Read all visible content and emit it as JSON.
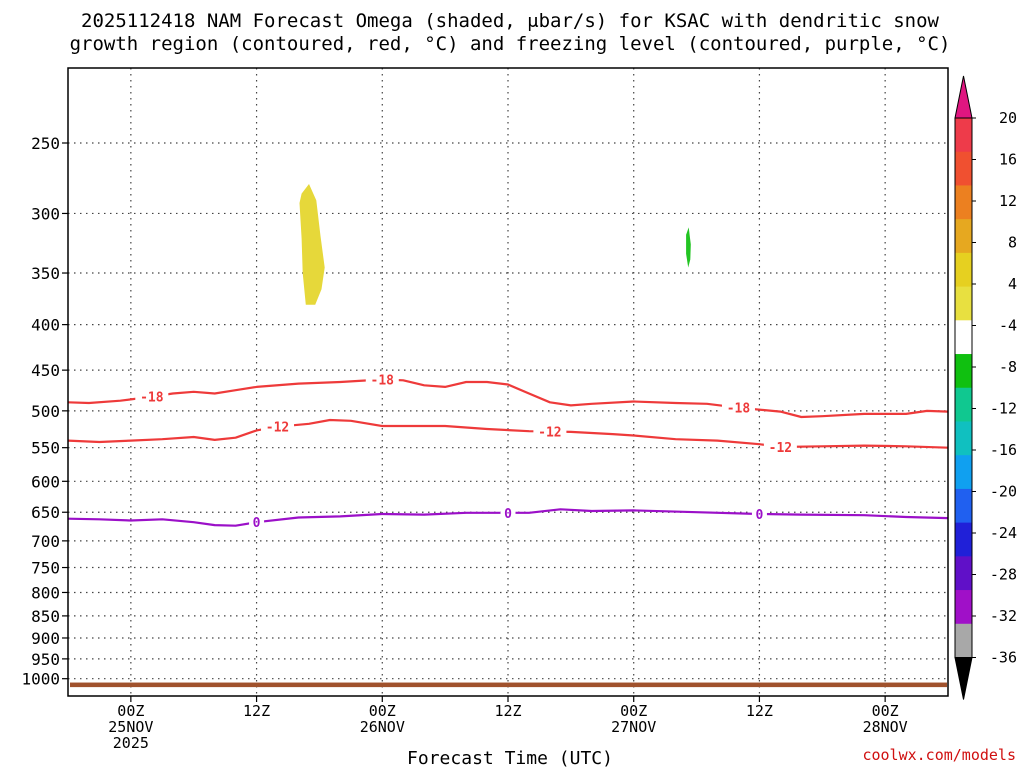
{
  "chart_data": {
    "type": "time-height-contour",
    "title_line1": "2025112418 NAM Forecast Omega (shaded, μbar/s) for KSAC with dendritic snow",
    "title_line2": "growth region (contoured, red, °C) and freezing level (contoured, purple, °C)",
    "xlabel": "Forecast Time (UTC)",
    "credit": "coolwx.com/models",
    "x_range_hours": [
      -6,
      78
    ],
    "x_ticks": [
      {
        "h": 0,
        "lines": [
          "00Z",
          "25NOV",
          "2025"
        ]
      },
      {
        "h": 12,
        "lines": [
          "12Z"
        ]
      },
      {
        "h": 24,
        "lines": [
          "00Z",
          "26NOV"
        ]
      },
      {
        "h": 36,
        "lines": [
          "12Z"
        ]
      },
      {
        "h": 48,
        "lines": [
          "00Z",
          "27NOV"
        ]
      },
      {
        "h": 60,
        "lines": [
          "12Z"
        ]
      },
      {
        "h": 72,
        "lines": [
          "00Z",
          "28NOV"
        ]
      }
    ],
    "y_range_hpa": [
      200,
      1040
    ],
    "y_ticks": [
      250,
      300,
      350,
      400,
      450,
      500,
      550,
      600,
      650,
      700,
      750,
      800,
      850,
      900,
      950,
      1000
    ],
    "contours": [
      {
        "name": "-18 C isotherm",
        "level": "-18",
        "color": "#ee3a3a",
        "label_hours": [
          2,
          24,
          58
        ],
        "points": [
          [
            -6,
            489
          ],
          [
            -4,
            490
          ],
          [
            -1,
            487
          ],
          [
            2,
            482
          ],
          [
            4,
            478
          ],
          [
            6,
            476
          ],
          [
            8,
            478
          ],
          [
            10,
            474
          ],
          [
            12,
            470
          ],
          [
            16,
            466
          ],
          [
            20,
            464
          ],
          [
            24,
            461
          ],
          [
            26,
            462
          ],
          [
            28,
            468
          ],
          [
            30,
            470
          ],
          [
            32,
            464
          ],
          [
            34,
            464
          ],
          [
            36,
            467
          ],
          [
            38,
            478
          ],
          [
            40,
            489
          ],
          [
            42,
            493
          ],
          [
            44,
            491
          ],
          [
            48,
            488
          ],
          [
            52,
            490
          ],
          [
            55,
            491
          ],
          [
            58,
            496
          ],
          [
            62,
            501
          ],
          [
            64,
            508
          ],
          [
            66,
            507
          ],
          [
            70,
            504
          ],
          [
            74,
            504
          ],
          [
            76,
            500
          ],
          [
            78,
            501
          ]
        ]
      },
      {
        "name": "-12 C isotherm",
        "level": "-12",
        "color": "#ee3a3a",
        "label_hours": [
          14,
          40,
          62
        ],
        "points": [
          [
            -6,
            540
          ],
          [
            -3,
            542
          ],
          [
            0,
            540
          ],
          [
            3,
            538
          ],
          [
            6,
            535
          ],
          [
            8,
            539
          ],
          [
            10,
            536
          ],
          [
            12,
            526
          ],
          [
            14,
            521
          ],
          [
            17,
            517
          ],
          [
            19,
            512
          ],
          [
            21,
            513
          ],
          [
            24,
            520
          ],
          [
            27,
            520
          ],
          [
            30,
            520
          ],
          [
            34,
            524
          ],
          [
            38,
            527
          ],
          [
            42,
            528
          ],
          [
            46,
            531
          ],
          [
            48,
            533
          ],
          [
            52,
            538
          ],
          [
            56,
            540
          ],
          [
            60,
            545
          ],
          [
            62,
            549
          ],
          [
            66,
            548
          ],
          [
            70,
            547
          ],
          [
            74,
            548
          ],
          [
            78,
            550
          ]
        ]
      },
      {
        "name": "0 C freezing level",
        "level": "0",
        "color": "#9b10c8",
        "label_hours": [
          12,
          36,
          60
        ],
        "points": [
          [
            -6,
            661
          ],
          [
            -3,
            662
          ],
          [
            0,
            664
          ],
          [
            3,
            662
          ],
          [
            6,
            667
          ],
          [
            8,
            672
          ],
          [
            10,
            673
          ],
          [
            12,
            667
          ],
          [
            16,
            659
          ],
          [
            20,
            657
          ],
          [
            24,
            653
          ],
          [
            28,
            654
          ],
          [
            32,
            651
          ],
          [
            36,
            651
          ],
          [
            38,
            651
          ],
          [
            41,
            645
          ],
          [
            44,
            648
          ],
          [
            48,
            647
          ],
          [
            54,
            650
          ],
          [
            60,
            653
          ],
          [
            64,
            654
          ],
          [
            70,
            655
          ],
          [
            74,
            658
          ],
          [
            78,
            660
          ]
        ]
      }
    ],
    "shaded_regions": [
      {
        "name": "omega 4 to 8 ubar/s",
        "color": "#e6d83a",
        "value_range": [
          4,
          8
        ],
        "points": [
          [
            16.3,
            285
          ],
          [
            17.0,
            278
          ],
          [
            17.7,
            290
          ],
          [
            18.1,
            318
          ],
          [
            18.5,
            345
          ],
          [
            18.2,
            365
          ],
          [
            17.6,
            380
          ],
          [
            16.7,
            380
          ],
          [
            16.4,
            350
          ],
          [
            16.3,
            320
          ],
          [
            16.1,
            292
          ]
        ]
      },
      {
        "name": "omega -8 to -4 ubar/s",
        "color": "#22c422",
        "value_range": [
          -8,
          -4
        ],
        "points": [
          [
            53.0,
            317
          ],
          [
            53.25,
            311
          ],
          [
            53.45,
            325
          ],
          [
            53.4,
            338
          ],
          [
            53.2,
            345
          ],
          [
            53.0,
            333
          ]
        ]
      }
    ],
    "terrain": {
      "color": "#a0522d",
      "top_hpa": 1010,
      "bottom_hpa": 1022
    },
    "colorbar": {
      "labels": [
        "20",
        "16",
        "12",
        "8",
        "4",
        "-4",
        "-8",
        "-12",
        "-16",
        "-20",
        "-24",
        "-28",
        "-32",
        "-36"
      ],
      "colors": [
        "#ee3b4a",
        "#f05030",
        "#ec8020",
        "#e6a820",
        "#e6d020",
        "#e8e040",
        "#ffffff",
        "#10c010",
        "#10c890",
        "#10c0c0",
        "#10a0f0",
        "#2060f0",
        "#2020d8",
        "#6010c8",
        "#a010c8",
        "#a8a8a8"
      ],
      "top_arrow_color": "#e01680",
      "bottom_arrow_color": "#000000"
    }
  }
}
